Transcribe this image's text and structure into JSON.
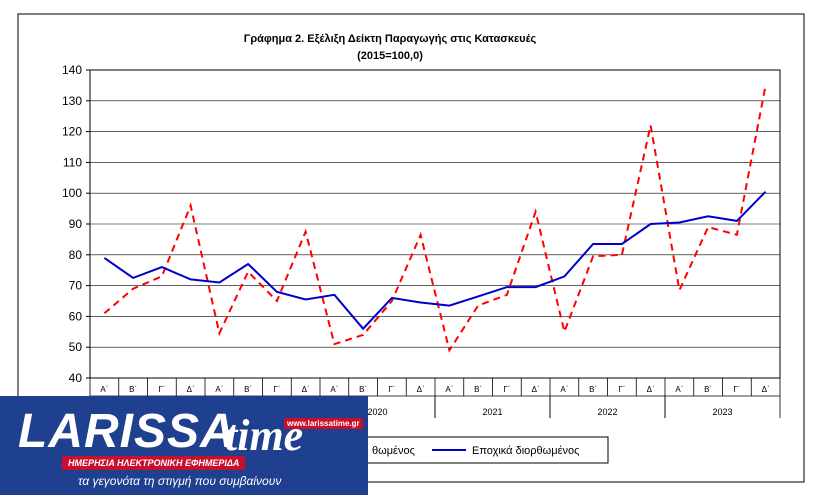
{
  "chart_data": {
    "type": "line",
    "title": "Γράφημα 2. Εξέλιξη  Δείκτη  Παραγωγής  στις Κατασκευές",
    "subtitle": "(2015=100,0)",
    "quarters": [
      "Α΄",
      "Β΄",
      "Γ΄",
      "Δ΄",
      "Α΄",
      "Β΄",
      "Γ΄",
      "Δ΄",
      "Α΄",
      "Β΄",
      "Γ΄",
      "Δ΄",
      "Α΄",
      "Β΄",
      "Γ΄",
      "Δ΄",
      "Α΄",
      "Β΄",
      "Γ΄",
      "Δ΄",
      "Α΄",
      "Β΄",
      "Γ΄",
      "Δ΄"
    ],
    "years": [
      {
        "label": "2020",
        "start": 8,
        "end": 12
      },
      {
        "label": "2021",
        "start": 12,
        "end": 16
      },
      {
        "label": "2022",
        "start": 16,
        "end": 20
      },
      {
        "label": "2023",
        "start": 20,
        "end": 24
      }
    ],
    "ylim": [
      40,
      140
    ],
    "yticks": [
      40,
      50,
      60,
      70,
      80,
      90,
      100,
      110,
      120,
      130,
      140
    ],
    "grid": true,
    "series": [
      {
        "name": "Μη εποχικά διορθωμένος",
        "style": "dashed",
        "color": "#ff0000",
        "values": [
          61,
          69,
          73,
          96,
          54.5,
          74.5,
          65,
          87.5,
          51,
          54,
          65,
          86.5,
          49,
          63.5,
          67,
          94,
          55,
          79.5,
          80,
          122,
          68.5,
          89,
          86.5,
          135
        ]
      },
      {
        "name": "Εποχικά διορθωμένος",
        "style": "solid",
        "color": "#0000cc",
        "values": [
          79,
          72.5,
          76,
          72,
          71,
          77,
          68,
          65.5,
          67,
          56,
          66,
          64.5,
          63.5,
          66.5,
          69.5,
          69.5,
          73,
          83.5,
          83.5,
          90,
          90.5,
          92.5,
          91,
          100.5
        ]
      }
    ],
    "legend": {
      "visible_texts": [
        "θωμένος",
        "Εποχικά διορθωμένος"
      ]
    }
  },
  "logo": {
    "brand_left": "LARISSA",
    "brand_right": "time",
    "url": "www.larissatime.gr",
    "band": "ΗΜΕΡΗΣΙΑ ΗΛΕΚΤΡΟΝΙΚΗ ΕΦΗΜΕΡΙΔΑ",
    "slogan": "τα γεγονότα τη στιγμή που συμβαίνουν"
  }
}
